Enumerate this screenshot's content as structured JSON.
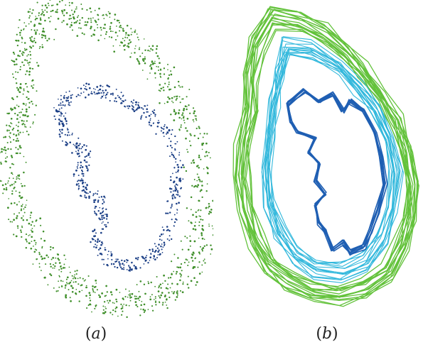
{
  "captions": {
    "a": {
      "open": "(",
      "letter": "a",
      "close": ")"
    },
    "b": {
      "open": "(",
      "letter": "b",
      "close": ")"
    }
  },
  "colors": {
    "outer": "#3f8f2a",
    "inner": "#1b3f86",
    "outer_lines": "#63c23b",
    "mid_lines": "#32b8dc",
    "inner_lines": "#1f5fb3"
  }
}
